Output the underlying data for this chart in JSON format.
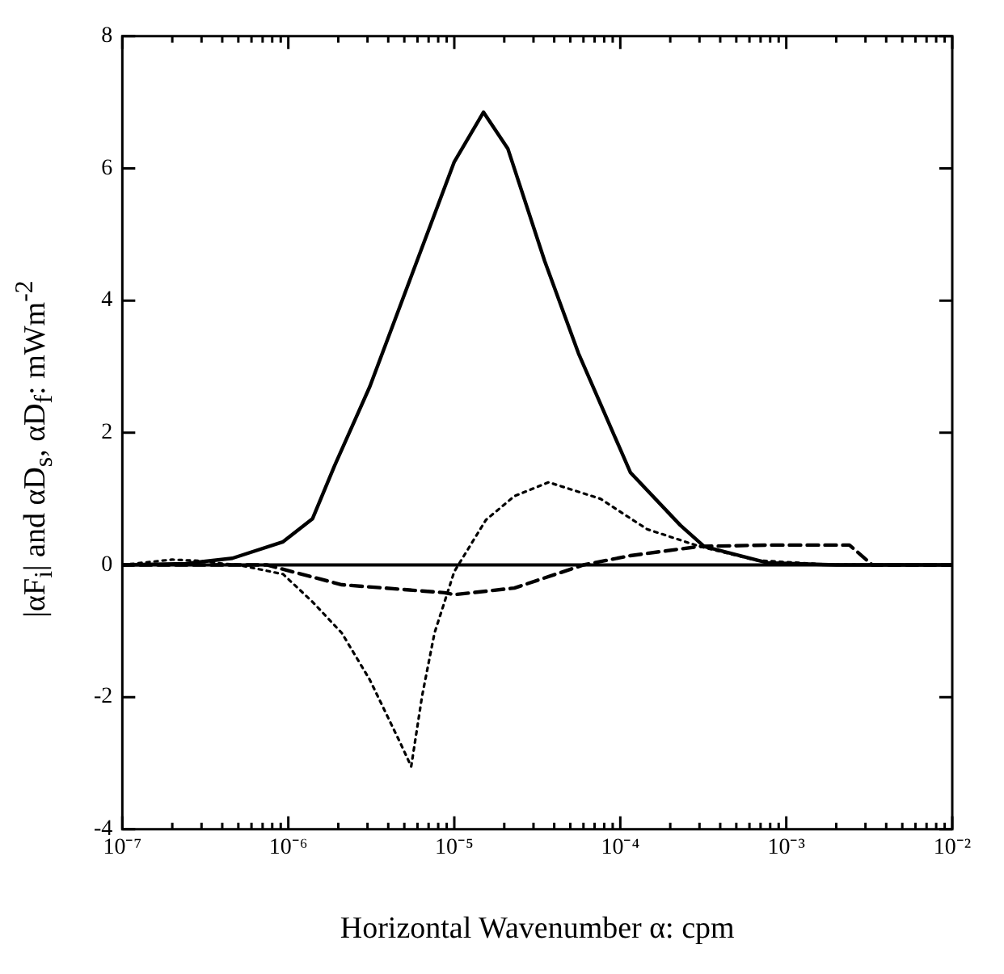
{
  "chart_data": {
    "type": "line",
    "xlabel": "Horizontal Wavenumber α: cpm",
    "ylabel": "|αF$_{i}$| and  αD$_{s}$, αD$_{f}$: mWm$^{-2}$",
    "log": "x",
    "xlim": [
      1e-07,
      0.01
    ],
    "xticks": [
      {
        "value": 1e-07,
        "label": "10⁻⁷"
      },
      {
        "value": 2e-07,
        "label": null
      },
      {
        "value": 3e-07,
        "label": null
      },
      {
        "value": 4e-07,
        "label": null
      },
      {
        "value": 5e-07,
        "label": null
      },
      {
        "value": 6e-07,
        "label": null
      },
      {
        "value": 7e-07,
        "label": null
      },
      {
        "value": 8e-07,
        "label": null
      },
      {
        "value": 9e-07,
        "label": null
      },
      {
        "value": 1e-06,
        "label": "10⁻⁶"
      },
      {
        "value": 2e-06,
        "label": null
      },
      {
        "value": 3e-06,
        "label": null
      },
      {
        "value": 4e-06,
        "label": null
      },
      {
        "value": 5e-06,
        "label": null
      },
      {
        "value": 6e-06,
        "label": null
      },
      {
        "value": 7e-06,
        "label": null
      },
      {
        "value": 8e-06,
        "label": null
      },
      {
        "value": 9e-06,
        "label": null
      },
      {
        "value": 1e-05,
        "label": "10⁻⁵"
      },
      {
        "value": 2e-05,
        "label": null
      },
      {
        "value": 3e-05,
        "label": null
      },
      {
        "value": 4e-05,
        "label": null
      },
      {
        "value": 5e-05,
        "label": null
      },
      {
        "value": 6e-05,
        "label": null
      },
      {
        "value": 7e-05,
        "label": null
      },
      {
        "value": 8e-05,
        "label": null
      },
      {
        "value": 9e-05,
        "label": null
      },
      {
        "value": 0.0001,
        "label": "10⁻⁴"
      },
      {
        "value": 0.0002,
        "label": null
      },
      {
        "value": 0.0003,
        "label": null
      },
      {
        "value": 0.0004,
        "label": null
      },
      {
        "value": 0.0005,
        "label": null
      },
      {
        "value": 0.0006,
        "label": null
      },
      {
        "value": 0.0007,
        "label": null
      },
      {
        "value": 0.0008,
        "label": null
      },
      {
        "value": 0.0009,
        "label": null
      },
      {
        "value": 0.001,
        "label": "10⁻³"
      },
      {
        "value": 0.002,
        "label": null
      },
      {
        "value": 0.003,
        "label": null
      },
      {
        "value": 0.004,
        "label": null
      },
      {
        "value": 0.005,
        "label": null
      },
      {
        "value": 0.006,
        "label": null
      },
      {
        "value": 0.007,
        "label": null
      },
      {
        "value": 0.008,
        "label": null
      },
      {
        "value": 0.009,
        "label": null
      },
      {
        "value": 0.01,
        "label": "10⁻²"
      }
    ],
    "ylim": [
      -4,
      8
    ],
    "yticks": [
      -4,
      -2,
      0,
      2,
      4,
      6,
      8
    ],
    "ref_lines": [
      {
        "axis": "y",
        "value": 0,
        "color": "#000000",
        "line_style": "solid"
      }
    ],
    "series": [
      {
        "color": "#000000",
        "line_style": "solid",
        "x": [
          1e-07,
          2.4e-07,
          4.6e-07,
          9.3e-07,
          1.4e-06,
          1.9e-06,
          3.1e-06,
          6.5e-06,
          1e-05,
          1.5e-05,
          2.1e-05,
          3.5e-05,
          5.6e-05,
          0.000115,
          0.00023,
          0.00032,
          0.00078,
          0.002,
          0.01
        ],
        "values": [
          0,
          0.02,
          0.1,
          0.35,
          0.7,
          1.5,
          2.7,
          4.85,
          6.1,
          6.85,
          6.3,
          4.6,
          3.2,
          1.4,
          0.6,
          0.28,
          0.03,
          0,
          0
        ]
      },
      {
        "color": "#000000",
        "line_style": "dashed",
        "x": [
          1e-07,
          3.5e-07,
          7.4e-07,
          2.1e-06,
          8.7e-06,
          1e-05,
          2.3e-05,
          6e-05,
          0.000115,
          0.0003,
          0.00078,
          0.0024,
          0.0033,
          0.01
        ],
        "values": [
          0,
          0,
          0,
          -0.3,
          -0.42,
          -0.45,
          -0.35,
          0,
          0.14,
          0.28,
          0.3,
          0.3,
          0,
          0
        ]
      },
      {
        "color": "#000000",
        "line_style": "dotted",
        "x": [
          1e-07,
          2e-07,
          3e-07,
          4e-07,
          5e-07,
          9.3e-07,
          1.4e-06,
          2.1e-06,
          3.1e-06,
          4.7e-06,
          5.5e-06,
          6.4e-06,
          7.6e-06,
          1e-05,
          1.55e-05,
          2.3e-05,
          3.7e-05,
          7.6e-05,
          0.000145,
          0.0003,
          0.00066,
          0.0019,
          0.01
        ],
        "values": [
          0,
          0.08,
          0.06,
          0.02,
          0,
          -0.14,
          -0.56,
          -1.03,
          -1.74,
          -2.68,
          -3.05,
          -1.98,
          -1.03,
          -0.1,
          0.68,
          1.04,
          1.25,
          1.0,
          0.54,
          0.28,
          0.07,
          0,
          0
        ]
      }
    ]
  }
}
